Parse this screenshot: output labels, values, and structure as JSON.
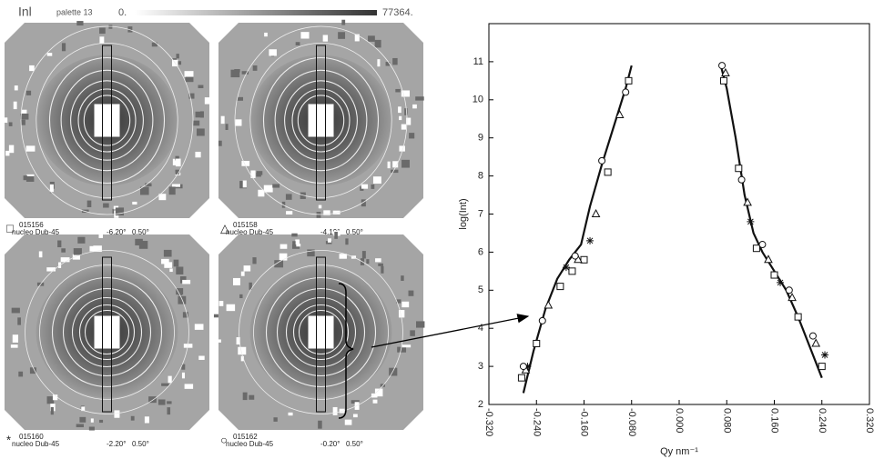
{
  "header": {
    "title": "Inl",
    "palette": "palette 13",
    "min": "0.",
    "max": "77364."
  },
  "panels": [
    {
      "symbol": "□",
      "id": "015156",
      "sample": "nucleo Dub-45",
      "angle": "-6.20°",
      "step": "0.50°"
    },
    {
      "symbol": "△",
      "id": "015158",
      "sample": "nucleo Dub-45",
      "angle": "-4.19°",
      "step": "0.50°"
    },
    {
      "symbol": "*",
      "id": "015160",
      "sample": "nucleo Dub-45",
      "angle": "-2.20°",
      "step": "0.50°"
    },
    {
      "symbol": "○",
      "id": "015162",
      "sample": "nucleo Dub-45",
      "angle": "-0.20°",
      "step": "0.50°"
    }
  ],
  "chart_data": {
    "type": "scatter",
    "xlabel": "Qy nm⁻¹",
    "ylabel": "log(Int)",
    "xlim": [
      -0.32,
      0.32
    ],
    "ylim": [
      2,
      12
    ],
    "xticks": [
      {
        "value": -0.32,
        "label": "-0.320"
      },
      {
        "value": -0.24,
        "label": "-0.240"
      },
      {
        "value": -0.16,
        "label": "-0.160"
      },
      {
        "value": -0.08,
        "label": "-0.080"
      },
      {
        "value": 0,
        "label": "0.000"
      },
      {
        "value": 0.08,
        "label": "0.080"
      },
      {
        "value": 0.16,
        "label": "0.160"
      },
      {
        "value": 0.24,
        "label": "0.240"
      },
      {
        "value": 0.32,
        "label": "0.320"
      }
    ],
    "yticks": [
      2,
      3,
      4,
      5,
      6,
      7,
      8,
      9,
      10,
      11
    ],
    "series": [
      {
        "mark": "line",
        "color": "#111111",
        "x": [
          -0.262,
          -0.245,
          -0.225,
          -0.205,
          -0.185,
          -0.165,
          -0.15,
          -0.13,
          -0.11,
          -0.09,
          -0.08,
          null,
          0.07,
          0.08,
          0.095,
          0.11,
          0.125,
          0.14,
          0.16,
          0.18,
          0.2,
          0.22,
          0.24
        ],
        "values": [
          2.3,
          3.4,
          4.5,
          5.3,
          5.8,
          6.2,
          7.2,
          8.3,
          9.3,
          10.3,
          10.9,
          null,
          10.9,
          10.3,
          9.0,
          7.5,
          6.5,
          6.0,
          5.5,
          5.0,
          4.3,
          3.5,
          2.7
        ]
      },
      {
        "mark": "square",
        "color": "#111111",
        "x": [
          -0.265,
          -0.24,
          -0.2,
          -0.18,
          -0.16,
          -0.12,
          -0.085,
          0.075,
          0.1,
          0.13,
          0.16,
          0.2,
          0.24
        ],
        "values": [
          2.7,
          3.6,
          5.1,
          5.5,
          5.8,
          8.1,
          10.5,
          10.5,
          8.2,
          6.1,
          5.4,
          4.3,
          3.0
        ]
      },
      {
        "mark": "triangle",
        "color": "#111111",
        "x": [
          -0.258,
          -0.22,
          -0.17,
          -0.14,
          -0.1,
          0.078,
          0.115,
          0.15,
          0.19,
          0.23
        ],
        "values": [
          2.9,
          4.6,
          5.8,
          7.0,
          9.6,
          10.7,
          7.3,
          5.8,
          4.8,
          3.6
        ]
      },
      {
        "mark": "star",
        "color": "#111111",
        "x": [
          -0.255,
          -0.19,
          -0.15,
          0.12,
          0.17,
          0.245
        ],
        "values": [
          3.0,
          5.6,
          6.3,
          6.8,
          5.2,
          3.3
        ]
      },
      {
        "mark": "circle",
        "color": "#111111",
        "x": [
          -0.262,
          -0.23,
          -0.175,
          -0.13,
          -0.09,
          0.072,
          0.105,
          0.14,
          0.185,
          0.225
        ],
        "values": [
          3.0,
          4.2,
          5.9,
          8.4,
          10.2,
          10.9,
          7.9,
          6.2,
          5.0,
          3.8
        ]
      }
    ]
  }
}
